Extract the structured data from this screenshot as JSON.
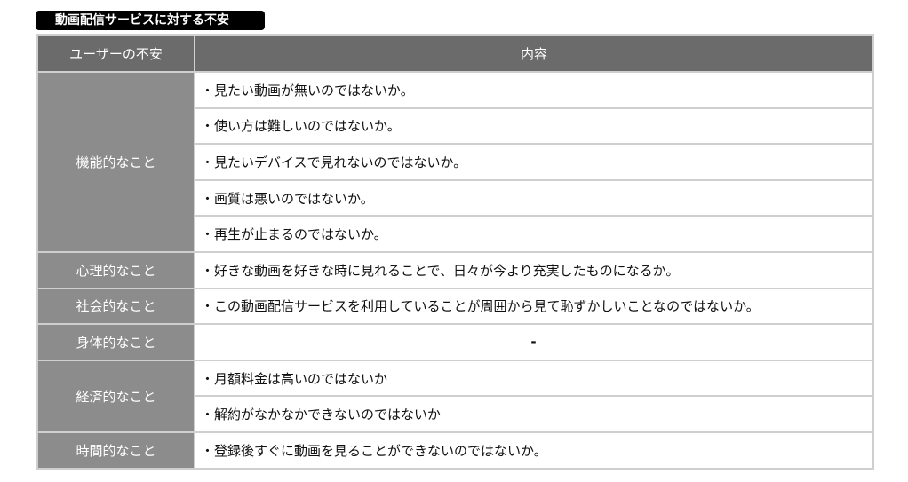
{
  "title": "動画配信サービスに対する不安",
  "headers": {
    "category": "ユーザーの不安",
    "content": "内容"
  },
  "rows": [
    {
      "category": "機能的なこと",
      "items": [
        "・見たい動画が無いのではないか。",
        "・使い方は難しいのではないか。",
        "・見たいデバイスで見れないのではないか。",
        "・画質は悪いのではないか。",
        "・再生が止まるのではないか。"
      ]
    },
    {
      "category": "心理的なこと",
      "items": [
        "・好きな動画を好きな時に見れることで、日々が今より充実したものになるか。"
      ]
    },
    {
      "category": "社会的なこと",
      "items": [
        "・この動画配信サービスを利用していることが周囲から見て恥ずかしいことなのではないか。"
      ]
    },
    {
      "category": "身体的なこと",
      "items": [
        "-"
      ]
    },
    {
      "category": "経済的なこと",
      "items": [
        "・月額料金は高いのではないか",
        "・解約がなかなかできないのではないか"
      ]
    },
    {
      "category": "時間的なこと",
      "items": [
        "・登録後すぐに動画を見ることができないのではないか。"
      ]
    }
  ]
}
